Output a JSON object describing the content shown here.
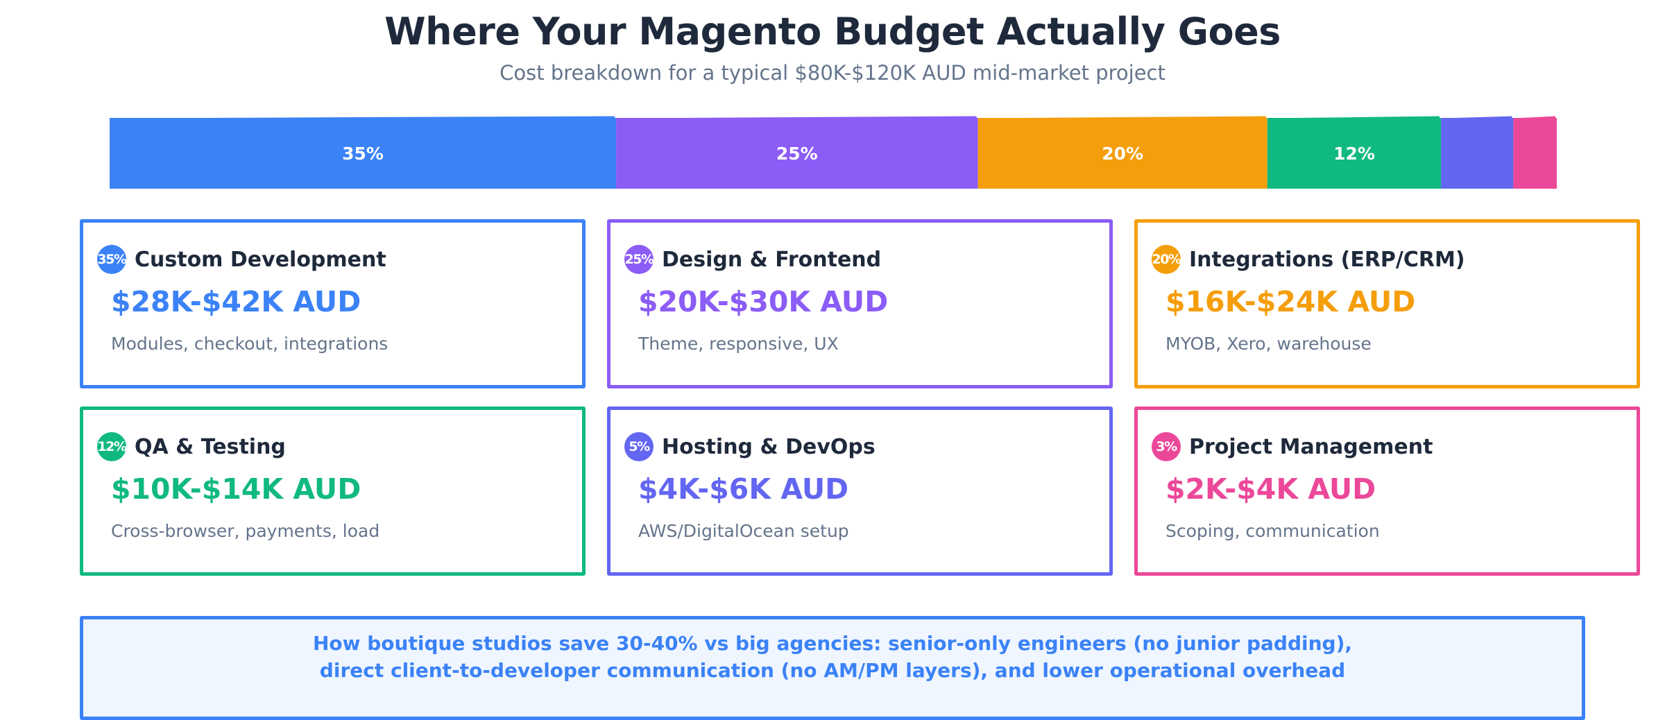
{
  "header": {
    "title": "Where Your Magento Budget Actually Goes",
    "subtitle": "Cost breakdown for a typical $80K-$120K AUD mid-market project"
  },
  "chart_data": {
    "type": "bar",
    "orientation": "horizontal-stacked",
    "unit": "%",
    "categories": [
      "Custom Development",
      "Design & Frontend",
      "Integrations (ERP/CRM)",
      "QA & Testing",
      "Hosting & DevOps",
      "Project Management"
    ],
    "values": [
      35,
      25,
      20,
      12,
      5,
      3
    ],
    "labels": [
      "35%",
      "25%",
      "20%",
      "12%",
      "",
      ""
    ],
    "colors": [
      "#3b82f6",
      "#8b5cf6",
      "#f59e0b",
      "#10b981",
      "#6366f1",
      "#ec4899"
    ]
  },
  "cards": [
    {
      "badge": "35%",
      "title": "Custom Development",
      "range": "$28K-$42K AUD",
      "desc": "Modules, checkout, integrations",
      "color": "#3b82f6"
    },
    {
      "badge": "25%",
      "title": "Design & Frontend",
      "range": "$20K-$30K AUD",
      "desc": "Theme, responsive, UX",
      "color": "#8b5cf6"
    },
    {
      "badge": "20%",
      "title": "Integrations (ERP/CRM)",
      "range": "$16K-$24K AUD",
      "desc": "MYOB, Xero, warehouse",
      "color": "#f59e0b"
    },
    {
      "badge": "12%",
      "title": "QA & Testing",
      "range": "$10K-$14K AUD",
      "desc": "Cross-browser, payments, load",
      "color": "#10b981"
    },
    {
      "badge": "5%",
      "title": "Hosting & DevOps",
      "range": "$4K-$6K AUD",
      "desc": "AWS/DigitalOcean setup",
      "color": "#6366f1"
    },
    {
      "badge": "3%",
      "title": "Project Management",
      "range": "$2K-$4K AUD",
      "desc": "Scoping, communication",
      "color": "#ec4899"
    }
  ],
  "callout": {
    "line1": "How boutique studios save 30-40% vs big agencies: senior-only engineers (no junior padding),",
    "line2": "direct client-to-developer communication (no AM/PM layers), and lower operational overhead"
  }
}
